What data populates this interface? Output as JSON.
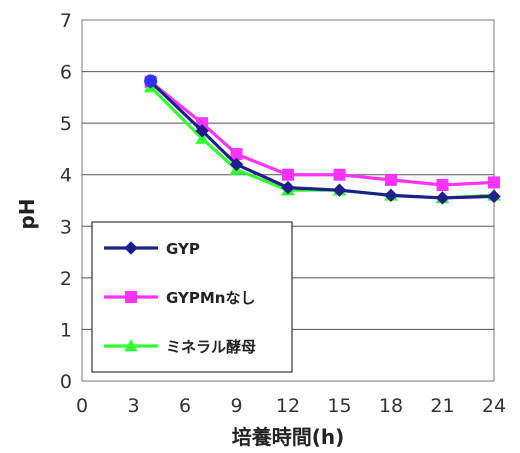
{
  "chart_data": {
    "type": "line",
    "xlabel": "培養時間(h)",
    "ylabel": "pH",
    "xlim": [
      0,
      24
    ],
    "ylim": [
      0,
      7
    ],
    "x_ticks": [
      "0",
      "3",
      "6",
      "9",
      "12",
      "15",
      "18",
      "21",
      "24"
    ],
    "y_ticks": [
      "0",
      "1",
      "2",
      "3",
      "4",
      "5",
      "6",
      "7"
    ],
    "grid": "horizontal",
    "legend_position": "lower-left",
    "x": [
      4,
      7,
      9,
      12,
      15,
      18,
      21,
      24
    ],
    "series": [
      {
        "name": "GYP",
        "values": [
          5.8,
          4.85,
          4.2,
          3.75,
          3.7,
          3.6,
          3.55,
          3.58
        ],
        "color": "#1f1f8a",
        "marker": "diamond"
      },
      {
        "name": "GYPMnなし",
        "values": [
          5.8,
          5.0,
          4.4,
          4.0,
          4.0,
          3.9,
          3.8,
          3.85
        ],
        "color": "#ff33ff",
        "marker": "square"
      },
      {
        "name": "ミネラル酵母",
        "values": [
          5.7,
          4.7,
          4.1,
          3.7,
          3.7,
          3.6,
          3.55,
          3.6
        ],
        "color": "#33ff33",
        "marker": "triangle"
      }
    ],
    "extra_point": {
      "x": 4,
      "y": 5.82,
      "marker": "circle",
      "color": "#3333ff"
    }
  }
}
